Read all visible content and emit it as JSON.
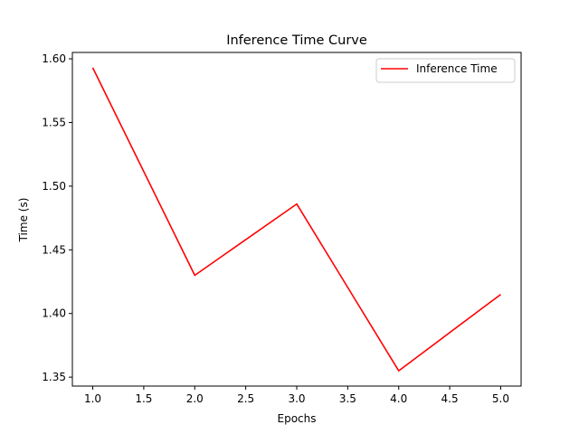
{
  "chart_data": {
    "type": "line",
    "title": "Inference Time Curve",
    "xlabel": "Epochs",
    "ylabel": "Time (s)",
    "xlim": [
      0.8,
      5.2
    ],
    "ylim": [
      1.343,
      1.605
    ],
    "xticks": [
      1.0,
      1.5,
      2.0,
      2.5,
      3.0,
      3.5,
      4.0,
      4.5,
      5.0
    ],
    "xtick_labels": [
      "1.0",
      "1.5",
      "2.0",
      "2.5",
      "3.0",
      "3.5",
      "4.0",
      "4.5",
      "5.0"
    ],
    "yticks": [
      1.35,
      1.4,
      1.45,
      1.5,
      1.55,
      1.6
    ],
    "ytick_labels": [
      "1.35",
      "1.40",
      "1.45",
      "1.50",
      "1.55",
      "1.60"
    ],
    "grid": false,
    "legend_position": "top-right",
    "series": [
      {
        "name": "Inference Time",
        "color": "#ff0000",
        "x": [
          1,
          2,
          3,
          4,
          5
        ],
        "y": [
          1.593,
          1.43,
          1.486,
          1.355,
          1.415
        ]
      }
    ]
  }
}
